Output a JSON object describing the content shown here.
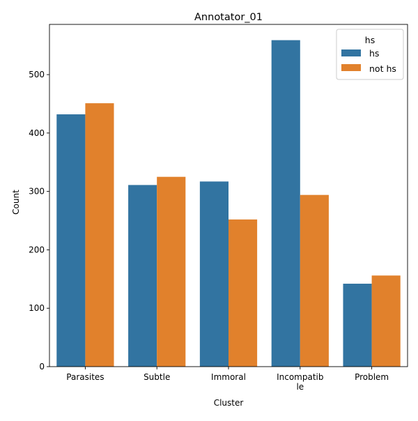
{
  "chart_data": {
    "type": "bar",
    "title": "Annotator_01",
    "xlabel": "Cluster",
    "ylabel": "Count",
    "categories": [
      "Parasites",
      "Subtle",
      "Immoral",
      "Incompatib\nle",
      "Problem"
    ],
    "series": [
      {
        "name": "hs",
        "color": "#3274a1",
        "values": [
          432,
          311,
          317,
          559,
          142
        ]
      },
      {
        "name": "not hs",
        "color": "#e1812c",
        "values": [
          451,
          325,
          252,
          294,
          156
        ]
      }
    ],
    "ylim": [
      0,
      586
    ],
    "yticks": [
      0,
      100,
      200,
      300,
      400,
      500
    ],
    "grid": false,
    "legend": {
      "title": "hs",
      "placement": "top-right"
    }
  }
}
